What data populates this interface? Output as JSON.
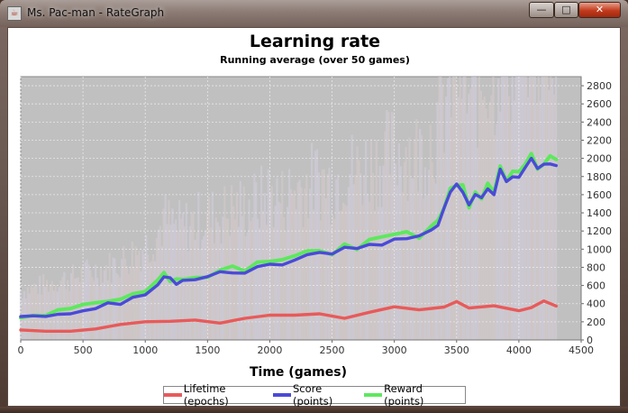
{
  "window": {
    "title": "Ms. Pac-man - RateGraph",
    "minimize_glyph": "—",
    "maximize_glyph": "□",
    "close_glyph": "✕"
  },
  "chart_data": {
    "type": "line",
    "title": "Learning rate",
    "subtitle": "Running average (over 50 games)",
    "xlabel": "Time (games)",
    "ylabel": "",
    "xlim": [
      0,
      4500
    ],
    "ylim": [
      0,
      2900
    ],
    "x_ticks": [
      0,
      500,
      1000,
      1500,
      2000,
      2500,
      3000,
      3500,
      4000,
      4500
    ],
    "y_ticks": [
      0,
      200,
      400,
      600,
      800,
      1000,
      1200,
      1400,
      1600,
      1800,
      2000,
      2200,
      2400,
      2600,
      2800
    ],
    "y_axis_side": "right",
    "grid": true,
    "legend_position": "bottom",
    "colors": {
      "plot_background": "#c0c0c0",
      "grid": "#e8e8e8",
      "lifetime": "#e85a5a",
      "score": "#4a4ad8",
      "reward": "#5ee85e"
    },
    "series": [
      {
        "name": "Lifetime (epochs)",
        "color": "#e85a5a",
        "x": [
          0,
          200,
          400,
          600,
          800,
          1000,
          1200,
          1400,
          1600,
          1800,
          2000,
          2200,
          2400,
          2600,
          2800,
          3000,
          3200,
          3400,
          3500,
          3600,
          3800,
          4000,
          4100,
          4200,
          4300
        ],
        "values": [
          90,
          100,
          110,
          125,
          150,
          180,
          195,
          200,
          195,
          210,
          235,
          250,
          270,
          275,
          300,
          340,
          330,
          380,
          405,
          390,
          375,
          360,
          390,
          400,
          390
        ]
      },
      {
        "name": "Score (points)",
        "color": "#4a4ad8",
        "x": [
          0,
          100,
          200,
          300,
          400,
          500,
          600,
          700,
          800,
          900,
          1000,
          1100,
          1150,
          1200,
          1250,
          1300,
          1400,
          1500,
          1600,
          1700,
          1800,
          1900,
          2000,
          2100,
          2200,
          2300,
          2400,
          2500,
          2600,
          2700,
          2800,
          2900,
          3000,
          3100,
          3200,
          3300,
          3350,
          3400,
          3450,
          3500,
          3550,
          3600,
          3650,
          3700,
          3750,
          3800,
          3850,
          3900,
          3950,
          4000,
          4050,
          4100,
          4150,
          4200,
          4250,
          4300
        ],
        "values": [
          230,
          250,
          270,
          300,
          310,
          340,
          360,
          380,
          420,
          470,
          520,
          600,
          700,
          660,
          640,
          640,
          680,
          700,
          720,
          760,
          770,
          800,
          860,
          820,
          890,
          920,
          960,
          920,
          1020,
          1000,
          1050,
          1080,
          1130,
          1150,
          1110,
          1240,
          1300,
          1430,
          1600,
          1680,
          1650,
          1450,
          1600,
          1550,
          1700,
          1620,
          1850,
          1730,
          1780,
          1800,
          1900,
          2000,
          1870,
          1900,
          1960,
          1920
        ]
      },
      {
        "name": "Reward (points)",
        "color": "#5ee85e",
        "x": [
          0,
          100,
          200,
          300,
          400,
          500,
          600,
          700,
          800,
          900,
          1000,
          1100,
          1150,
          1200,
          1250,
          1300,
          1400,
          1500,
          1600,
          1700,
          1800,
          1900,
          2000,
          2100,
          2200,
          2300,
          2400,
          2500,
          2600,
          2700,
          2800,
          2900,
          3000,
          3100,
          3200,
          3300,
          3350,
          3400,
          3450,
          3500,
          3550,
          3600,
          3650,
          3700,
          3750,
          3800,
          3850,
          3900,
          3950,
          4000,
          4050,
          4100,
          4150,
          4200,
          4250,
          4300
        ],
        "values": [
          250,
          270,
          290,
          320,
          330,
          360,
          380,
          400,
          440,
          490,
          540,
          620,
          720,
          680,
          660,
          660,
          700,
          720,
          745,
          785,
          795,
          825,
          890,
          850,
          920,
          950,
          990,
          950,
          1050,
          1030,
          1080,
          1110,
          1165,
          1185,
          1145,
          1280,
          1340,
          1470,
          1640,
          1720,
          1690,
          1490,
          1640,
          1590,
          1740,
          1660,
          1890,
          1770,
          1820,
          1840,
          1940,
          2040,
          1910,
          1940,
          2010,
          1960
        ]
      }
    ]
  }
}
